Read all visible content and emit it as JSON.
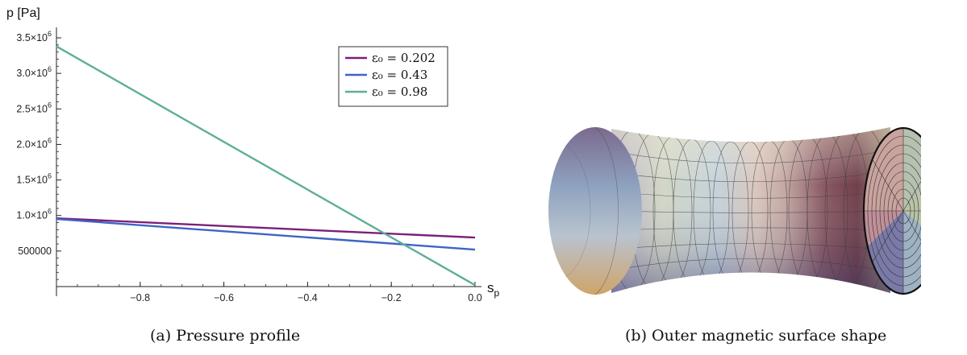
{
  "chart_data": {
    "type": "line",
    "ylabel": "p [Pa]",
    "xlabel": "s_p",
    "xlim": [
      -1.0,
      0.0
    ],
    "ylim": [
      0,
      3500000
    ],
    "x_ticks": [
      {
        "value": -0.8,
        "label": "−0.8"
      },
      {
        "value": -0.6,
        "label": "−0.6"
      },
      {
        "value": -0.4,
        "label": "−0.4"
      },
      {
        "value": -0.2,
        "label": "−0.2"
      },
      {
        "value": 0.0,
        "label": "0.0"
      }
    ],
    "y_ticks": [
      {
        "value": 500000,
        "mant": "500000",
        "exp": ""
      },
      {
        "value": 1000000,
        "mant": "1.0×10",
        "exp": "6"
      },
      {
        "value": 1500000,
        "mant": "1.5×10",
        "exp": "6"
      },
      {
        "value": 2000000,
        "mant": "2.0×10",
        "exp": "6"
      },
      {
        "value": 2500000,
        "mant": "2.5×10",
        "exp": "6"
      },
      {
        "value": 3000000,
        "mant": "3.0×10",
        "exp": "6"
      },
      {
        "value": 3500000,
        "mant": "3.5×10",
        "exp": "6"
      }
    ],
    "grid": false,
    "legend_position": "top-right",
    "series": [
      {
        "name": "ε₀ = 0.202",
        "color": "#7b1f7a",
        "x": [
          -1.0,
          0.0
        ],
        "y": [
          960000,
          690000
        ]
      },
      {
        "name": "ε₀ = 0.43",
        "color": "#3f64c8",
        "x": [
          -1.0,
          0.0
        ],
        "y": [
          950000,
          520000
        ]
      },
      {
        "name": "ε₀ = 0.98",
        "color": "#5fae98",
        "x": [
          -1.0,
          0.0
        ],
        "y": [
          3380000,
          20000
        ]
      }
    ]
  },
  "captions": {
    "a": "(a) Pressure profile",
    "b": "(b) Outer magnetic surface shape"
  }
}
